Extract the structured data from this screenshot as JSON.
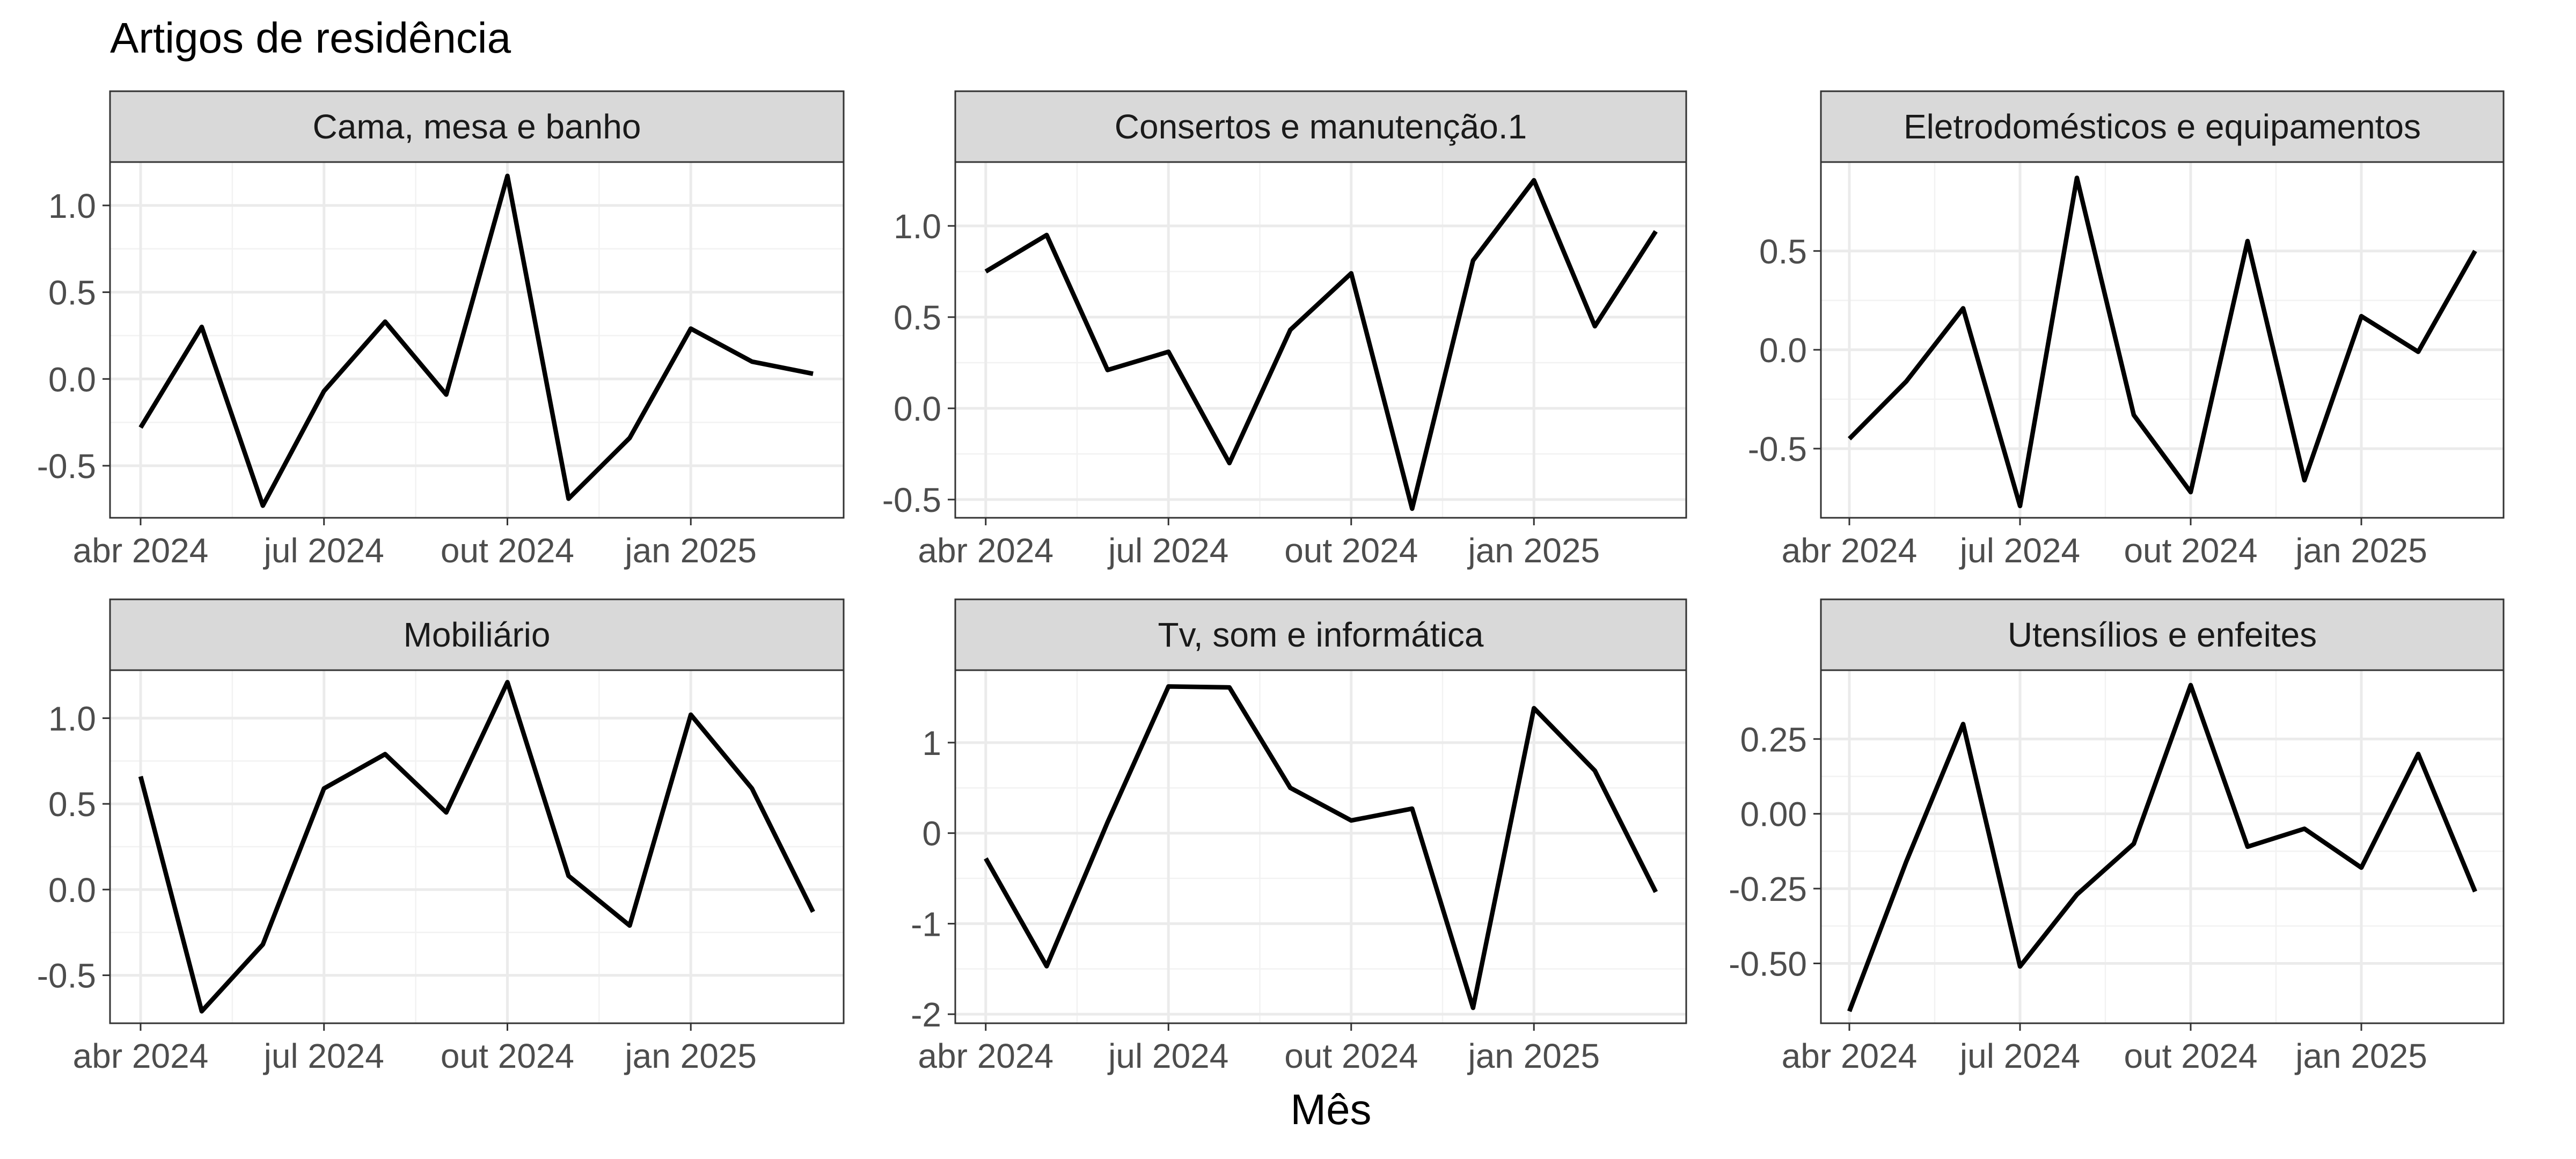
{
  "chart_data": {
    "type": "line",
    "title": "Artigos de residência",
    "xlabel": "Mês",
    "ylabel": "",
    "x": [
      "2024-04",
      "2024-05",
      "2024-06",
      "2024-07",
      "2024-08",
      "2024-09",
      "2024-10",
      "2024-11",
      "2024-12",
      "2025-01",
      "2025-02",
      "2025-03"
    ],
    "x_ticks": {
      "labels": [
        "abr 2024",
        "jul 2024",
        "out 2024",
        "jan 2025"
      ],
      "values": [
        "2024-04",
        "2024-07",
        "2024-10",
        "2025-01"
      ]
    },
    "grid": true,
    "line_color": "#000000",
    "panels": [
      {
        "name": "Cama, mesa e banho",
        "ylim": [
          -0.8,
          1.25
        ],
        "y_ticks": [
          -0.5,
          0.0,
          0.5,
          1.0
        ],
        "y_tick_labels": [
          "-0.5",
          "0.0",
          "0.5",
          "1.0"
        ],
        "values": [
          -0.28,
          0.3,
          -0.73,
          -0.07,
          0.33,
          -0.09,
          1.17,
          -0.69,
          -0.34,
          0.29,
          0.1,
          0.03
        ]
      },
      {
        "name": "Consertos e manutenção.1",
        "ylim": [
          -0.6,
          1.35
        ],
        "y_ticks": [
          -0.5,
          0.0,
          0.5,
          1.0
        ],
        "y_tick_labels": [
          "-0.5",
          "0.0",
          "0.5",
          "1.0"
        ],
        "values": [
          0.75,
          0.95,
          0.21,
          0.31,
          -0.3,
          0.43,
          0.74,
          -0.55,
          0.81,
          1.25,
          0.45,
          0.97
        ]
      },
      {
        "name": "Eletrodomésticos e equipamentos",
        "ylim": [
          -0.85,
          0.95
        ],
        "y_ticks": [
          -0.5,
          0.0,
          0.5
        ],
        "y_tick_labels": [
          "-0.5",
          "0.0",
          "0.5"
        ],
        "values": [
          -0.45,
          -0.16,
          0.21,
          -0.79,
          0.87,
          -0.33,
          -0.72,
          0.55,
          -0.66,
          0.17,
          -0.01,
          0.5
        ]
      },
      {
        "name": "Mobiliário",
        "ylim": [
          -0.78,
          1.28
        ],
        "y_ticks": [
          -0.5,
          0.0,
          0.5,
          1.0
        ],
        "y_tick_labels": [
          "-0.5",
          "0.0",
          "0.5",
          "1.0"
        ],
        "values": [
          0.66,
          -0.71,
          -0.32,
          0.59,
          0.79,
          0.45,
          1.21,
          0.08,
          -0.21,
          1.02,
          0.59,
          -0.13
        ]
      },
      {
        "name": "Tv, som e informática",
        "ylim": [
          -2.1,
          1.8
        ],
        "y_ticks": [
          -2,
          -1,
          0,
          1
        ],
        "y_tick_labels": [
          "-2",
          "-1",
          "0",
          "1"
        ],
        "values": [
          -0.28,
          -1.47,
          0.12,
          1.62,
          1.61,
          0.5,
          0.14,
          0.27,
          -1.93,
          1.38,
          0.69,
          -0.65
        ]
      },
      {
        "name": "Utensílios e enfeites",
        "ylim": [
          -0.7,
          0.48
        ],
        "y_ticks": [
          -0.5,
          -0.25,
          0.0,
          0.25
        ],
        "y_tick_labels": [
          "-0.50",
          "-0.25",
          "0.00",
          "0.25"
        ],
        "values": [
          -0.66,
          -0.16,
          0.3,
          -0.51,
          -0.27,
          -0.1,
          0.43,
          -0.11,
          -0.05,
          -0.18,
          0.2,
          -0.26
        ]
      }
    ]
  }
}
